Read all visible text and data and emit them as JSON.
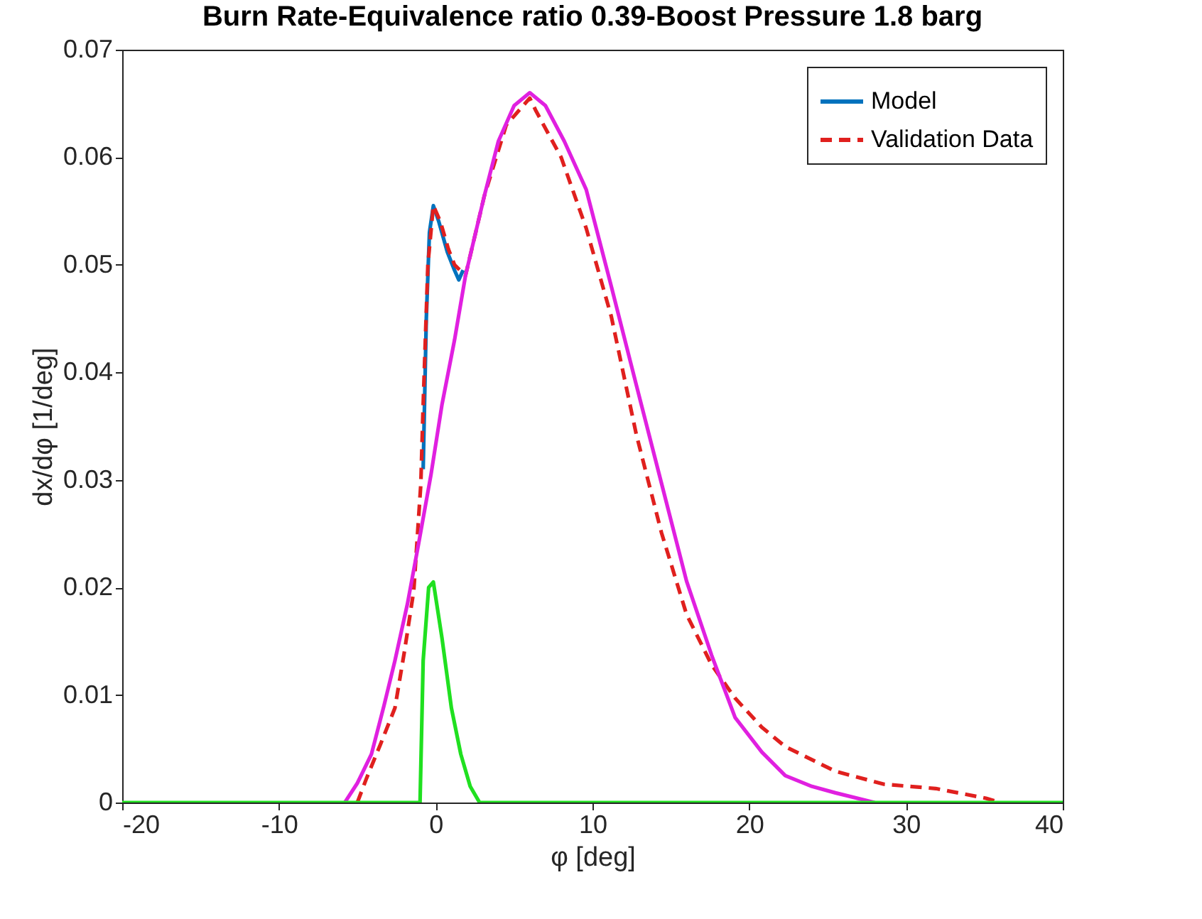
{
  "chart_data": {
    "type": "line",
    "title": "Burn Rate-Equivalence ratio 0.39-Boost Pressure 1.8 barg",
    "xlabel": "φ [deg]",
    "ylabel": "dx/dφ [1/deg]",
    "xlim": [
      -20,
      40
    ],
    "xticks": [
      -20,
      -10,
      0,
      10,
      20,
      30,
      40
    ],
    "ylim": [
      0,
      0.07
    ],
    "yticks": [
      0,
      0.01,
      0.02,
      0.03,
      0.04,
      0.05,
      0.06,
      0.07
    ],
    "grid": false,
    "legend": "top right",
    "marker": "none",
    "series": [
      {
        "name": "Model",
        "color": "#0072bd",
        "line_style": "solid",
        "x": [
          -0.8,
          -0.6,
          -0.4,
          -0.15,
          0.2,
          0.74,
          1.2,
          1.47,
          1.75
        ],
        "values": [
          0.031,
          0.045,
          0.053,
          0.0555,
          0.054,
          0.0512,
          0.0495,
          0.0486,
          0.0495
        ]
      },
      {
        "name": "Validation Data",
        "color": "#e0201e",
        "line_style": "dashed",
        "x": [
          -5.0,
          -4.4,
          -3.5,
          -2.6,
          -2.0,
          -1.4,
          -0.95,
          -0.8,
          -0.5,
          -0.15,
          0.3,
          0.8,
          1.2,
          1.9,
          3.1,
          4.5,
          6.0,
          6.4,
          8.0,
          9.6,
          11.2,
          12.8,
          14.4,
          16.0,
          17.6,
          19.1,
          20.8,
          22.3,
          25.5,
          28.6,
          31.9,
          35.1,
          36.0
        ],
        "values": [
          0,
          0.0023,
          0.0055,
          0.0088,
          0.014,
          0.0197,
          0.0296,
          0.037,
          0.05,
          0.0555,
          0.054,
          0.0515,
          0.05,
          0.049,
          0.0564,
          0.063,
          0.0655,
          0.0643,
          0.06,
          0.0534,
          0.0452,
          0.0342,
          0.0251,
          0.0175,
          0.0128,
          0.0097,
          0.007,
          0.0052,
          0.0029,
          0.0017,
          0.0013,
          0.0004,
          0
        ]
      },
      {
        "color": "#e020e0",
        "line_style": "solid",
        "x": [
          -5.8,
          -5.0,
          -4.1,
          -3.3,
          -2.6,
          -1.8,
          -1.1,
          -0.3,
          0.4,
          1.2,
          1.9,
          3.1,
          4.0,
          5.0,
          6.0,
          7.0,
          8.2,
          9.6,
          11.2,
          12.8,
          14.4,
          16.0,
          17.6,
          19.1,
          20.8,
          22.3,
          24.0,
          25.5,
          28.0
        ],
        "values": [
          0,
          0.0018,
          0.0045,
          0.009,
          0.0132,
          0.0185,
          0.024,
          0.0305,
          0.037,
          0.043,
          0.049,
          0.0564,
          0.0615,
          0.0648,
          0.066,
          0.0648,
          0.0615,
          0.057,
          0.048,
          0.0388,
          0.0297,
          0.0206,
          0.0137,
          0.0079,
          0.0047,
          0.0025,
          0.0015,
          0.0009,
          0
        ]
      },
      {
        "color": "#20e020",
        "line_style": "solid",
        "x": [
          -20,
          -1.0,
          -0.8,
          -0.45,
          -0.15,
          0.4,
          1.0,
          1.6,
          2.2,
          2.8,
          40
        ],
        "values": [
          0,
          0,
          0.0132,
          0.02,
          0.0205,
          0.0153,
          0.0088,
          0.0045,
          0.0015,
          0,
          0
        ]
      }
    ]
  }
}
